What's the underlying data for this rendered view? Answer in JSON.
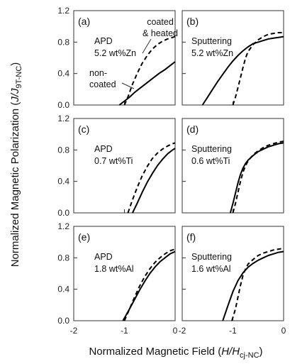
{
  "figure": {
    "ylabel_pre": "Normalized Magnetic Polarization (",
    "ylabel_var": "J/J",
    "ylabel_sub": "9T-NC",
    "ylabel_post": ")",
    "xlabel_pre": "Normalized Magnetic Field (",
    "xlabel_var": "H/H",
    "xlabel_sub": "cj-NC",
    "xlabel_post": ")"
  },
  "chart_data": [
    {
      "type": "line",
      "panel": "(a)",
      "annotation": [
        "APD",
        "5.2 wt%Zn"
      ],
      "series_labels": [
        {
          "style": "dashed",
          "text": [
            "coated",
            "& heated"
          ]
        },
        {
          "style": "solid",
          "text": [
            "non-",
            "coated"
          ]
        }
      ],
      "xlim": [
        -2,
        0
      ],
      "ylim": [
        0,
        1.2
      ],
      "xticks": [],
      "yticks": [
        "0.0",
        "0.4",
        "0.8",
        "1.2"
      ],
      "series": [
        {
          "style": "dashed",
          "x": [
            -1.0,
            -0.92,
            -0.85,
            -0.75,
            -0.65,
            -0.55,
            -0.45,
            -0.35,
            -0.25,
            -0.15,
            -0.05,
            0
          ],
          "y": [
            0.0,
            0.12,
            0.25,
            0.4,
            0.53,
            0.63,
            0.71,
            0.77,
            0.81,
            0.84,
            0.86,
            0.87
          ]
        },
        {
          "style": "solid",
          "x": [
            -1.1,
            -1.0,
            -0.9,
            -0.8,
            -0.7,
            -0.6,
            -0.5,
            -0.4,
            -0.3,
            -0.2,
            -0.1,
            0
          ],
          "y": [
            0.0,
            0.05,
            0.1,
            0.16,
            0.21,
            0.26,
            0.31,
            0.36,
            0.41,
            0.45,
            0.5,
            0.55
          ]
        }
      ]
    },
    {
      "type": "line",
      "panel": "(b)",
      "annotation": [
        "Sputtering",
        "5.2 wt%Zn"
      ],
      "xlim": [
        -2,
        0
      ],
      "ylim": [
        0,
        1.2
      ],
      "xticks": [],
      "yticks": [],
      "series": [
        {
          "style": "dashed",
          "x": [
            -1.0,
            -0.95,
            -0.9,
            -0.85,
            -0.8,
            -0.75,
            -0.7,
            -0.6,
            -0.5,
            -0.4,
            -0.3,
            -0.2,
            -0.1,
            0
          ],
          "y": [
            0.0,
            0.1,
            0.22,
            0.35,
            0.48,
            0.6,
            0.68,
            0.77,
            0.83,
            0.87,
            0.9,
            0.91,
            0.92,
            0.92
          ]
        },
        {
          "style": "solid",
          "x": [
            -1.6,
            -1.5,
            -1.4,
            -1.3,
            -1.2,
            -1.1,
            -1.0,
            -0.9,
            -0.8,
            -0.7,
            -0.6,
            -0.5,
            -0.4,
            -0.3,
            -0.2,
            -0.1,
            0
          ],
          "y": [
            0.0,
            0.1,
            0.2,
            0.3,
            0.39,
            0.48,
            0.56,
            0.63,
            0.69,
            0.74,
            0.78,
            0.8,
            0.82,
            0.84,
            0.85,
            0.86,
            0.87
          ]
        }
      ]
    },
    {
      "type": "line",
      "panel": "(c)",
      "annotation": [
        "APD",
        "0.7 wt%Ti"
      ],
      "xlim": [
        -2,
        0
      ],
      "ylim": [
        0,
        1.2
      ],
      "xticks": [],
      "yticks": [
        "0.0",
        "0.4",
        "0.8",
        "1.2"
      ],
      "series": [
        {
          "style": "dashed",
          "x": [
            -0.93,
            -0.85,
            -0.75,
            -0.65,
            -0.55,
            -0.45,
            -0.35,
            -0.25,
            -0.15,
            -0.05,
            0
          ],
          "y": [
            0.0,
            0.15,
            0.32,
            0.47,
            0.59,
            0.69,
            0.76,
            0.81,
            0.85,
            0.88,
            0.89
          ]
        },
        {
          "style": "solid",
          "x": [
            -0.84,
            -0.75,
            -0.65,
            -0.55,
            -0.45,
            -0.35,
            -0.25,
            -0.15,
            -0.05,
            0
          ],
          "y": [
            0.0,
            0.12,
            0.26,
            0.39,
            0.5,
            0.6,
            0.68,
            0.75,
            0.8,
            0.82
          ]
        }
      ]
    },
    {
      "type": "line",
      "panel": "(d)",
      "annotation": [
        "Sputtering",
        "0.6 wt%Ti"
      ],
      "xlim": [
        -2,
        0
      ],
      "ylim": [
        0,
        1.2
      ],
      "xticks": [],
      "yticks": [],
      "series": [
        {
          "style": "dashed",
          "x": [
            -1.0,
            -0.95,
            -0.9,
            -0.85,
            -0.8,
            -0.75,
            -0.7,
            -0.6,
            -0.5,
            -0.4,
            -0.3,
            -0.2,
            -0.1,
            0
          ],
          "y": [
            0.0,
            0.12,
            0.26,
            0.4,
            0.52,
            0.6,
            0.66,
            0.74,
            0.79,
            0.83,
            0.86,
            0.88,
            0.9,
            0.91
          ]
        },
        {
          "style": "solid",
          "x": [
            -1.05,
            -1.0,
            -0.95,
            -0.9,
            -0.85,
            -0.8,
            -0.75,
            -0.7,
            -0.6,
            -0.5,
            -0.4,
            -0.3,
            -0.2,
            -0.1,
            0
          ],
          "y": [
            0.0,
            0.12,
            0.25,
            0.38,
            0.49,
            0.57,
            0.63,
            0.67,
            0.73,
            0.78,
            0.81,
            0.84,
            0.86,
            0.88,
            0.89
          ]
        }
      ]
    },
    {
      "type": "line",
      "panel": "(e)",
      "annotation": [
        "APD",
        "1.8 wt%Al"
      ],
      "xlim": [
        -2,
        0
      ],
      "ylim": [
        0,
        1.2
      ],
      "xticks": [
        "-2",
        "-1",
        "0"
      ],
      "yticks": [
        "0.0",
        "0.4",
        "0.8",
        "1.2"
      ],
      "series": [
        {
          "style": "dashed",
          "x": [
            -1.0,
            -0.9,
            -0.8,
            -0.7,
            -0.6,
            -0.5,
            -0.4,
            -0.3,
            -0.2,
            -0.1,
            0
          ],
          "y": [
            0.0,
            0.15,
            0.3,
            0.44,
            0.56,
            0.66,
            0.74,
            0.8,
            0.85,
            0.89,
            0.91
          ]
        },
        {
          "style": "solid",
          "x": [
            -1.03,
            -0.9,
            -0.8,
            -0.7,
            -0.6,
            -0.5,
            -0.4,
            -0.3,
            -0.2,
            -0.1,
            0
          ],
          "y": [
            0.0,
            0.15,
            0.27,
            0.39,
            0.5,
            0.6,
            0.68,
            0.75,
            0.8,
            0.85,
            0.88
          ]
        }
      ]
    },
    {
      "type": "line",
      "panel": "(f)",
      "annotation": [
        "Sputtering",
        "1.6 wt%Al"
      ],
      "xlim": [
        -2,
        0
      ],
      "ylim": [
        0,
        1.2
      ],
      "xticks": [
        "-2",
        "-1",
        "0"
      ],
      "yticks": [],
      "series": [
        {
          "style": "dashed",
          "x": [
            -1.02,
            -0.95,
            -0.9,
            -0.85,
            -0.8,
            -0.75,
            -0.7,
            -0.6,
            -0.5,
            -0.4,
            -0.3,
            -0.2,
            -0.1,
            0
          ],
          "y": [
            0.0,
            0.15,
            0.3,
            0.45,
            0.58,
            0.66,
            0.72,
            0.78,
            0.83,
            0.86,
            0.88,
            0.9,
            0.91,
            0.92
          ]
        },
        {
          "style": "solid",
          "x": [
            -1.2,
            -1.1,
            -1.0,
            -0.9,
            -0.8,
            -0.7,
            -0.6,
            -0.5,
            -0.4,
            -0.3,
            -0.2,
            -0.1,
            0
          ],
          "y": [
            0.0,
            0.19,
            0.37,
            0.51,
            0.61,
            0.68,
            0.73,
            0.77,
            0.8,
            0.83,
            0.85,
            0.87,
            0.88
          ]
        }
      ]
    }
  ]
}
